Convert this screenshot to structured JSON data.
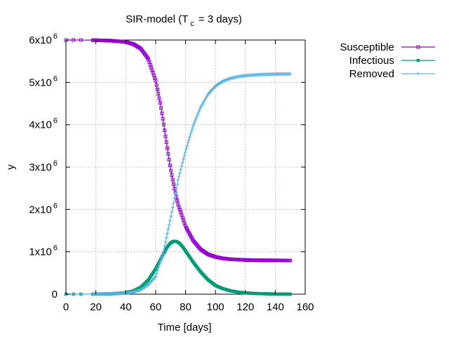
{
  "chart_data": {
    "type": "line",
    "title": {
      "main": "SIR-model (T",
      "sub": "c",
      "tail": "= 3 days)"
    },
    "xlabel": "Time [days]",
    "ylabel": "y",
    "xlim": [
      0,
      160
    ],
    "ylim": [
      0,
      6000000
    ],
    "x_ticks": [
      {
        "value": 0,
        "label": "0"
      },
      {
        "value": 20,
        "label": "20"
      },
      {
        "value": 40,
        "label": "40"
      },
      {
        "value": 60,
        "label": "60"
      },
      {
        "value": 80,
        "label": "80"
      },
      {
        "value": 100,
        "label": "100"
      },
      {
        "value": 120,
        "label": "120"
      },
      {
        "value": 140,
        "label": "140"
      },
      {
        "value": 160,
        "label": "160"
      }
    ],
    "y_ticks": [
      {
        "value": 0,
        "base": "0",
        "exp": ""
      },
      {
        "value": 1000000,
        "base": "1x10",
        "exp": "6"
      },
      {
        "value": 2000000,
        "base": "2x10",
        "exp": "6"
      },
      {
        "value": 3000000,
        "base": "3x10",
        "exp": "6"
      },
      {
        "value": 4000000,
        "base": "4x10",
        "exp": "6"
      },
      {
        "value": 5000000,
        "base": "5x10",
        "exp": "6"
      },
      {
        "value": 6000000,
        "base": "6x10",
        "exp": "6"
      }
    ],
    "grid": true,
    "legend_position": "outside-top-right",
    "series": [
      {
        "name": "Susceptible",
        "color": "#9400d3",
        "marker": "open-square",
        "x": [
          0,
          5,
          10,
          20,
          30,
          40,
          45,
          50,
          55,
          60,
          63,
          65,
          68,
          70,
          73,
          75,
          80,
          85,
          90,
          95,
          100,
          105,
          110,
          120,
          130,
          140,
          150
        ],
        "y": [
          6000000,
          6000000,
          6000000,
          5995000,
          5985000,
          5955000,
          5905000,
          5800000,
          5560000,
          5040000,
          4520000,
          4100000,
          3400000,
          2950000,
          2420000,
          2120000,
          1600000,
          1270000,
          1060000,
          940000,
          880000,
          845000,
          825000,
          808000,
          800000,
          797000,
          795000
        ]
      },
      {
        "name": "Infectious",
        "color": "#009e73",
        "marker": "filled-square",
        "x": [
          0,
          10,
          20,
          30,
          40,
          45,
          50,
          55,
          60,
          65,
          68,
          70,
          72,
          74,
          76,
          78,
          80,
          85,
          90,
          95,
          100,
          105,
          110,
          115,
          120,
          130,
          140,
          150
        ],
        "y": [
          0,
          0,
          2000,
          8000,
          35000,
          75000,
          160000,
          330000,
          600000,
          940000,
          1130000,
          1210000,
          1250000,
          1245000,
          1200000,
          1120000,
          1020000,
          760000,
          530000,
          340000,
          205000,
          130000,
          80000,
          50000,
          30000,
          12000,
          5000,
          2000
        ]
      },
      {
        "name": "Removed",
        "color": "#56b4e9",
        "marker": "plus",
        "x": [
          0,
          10,
          20,
          30,
          40,
          45,
          50,
          55,
          60,
          65,
          68,
          70,
          73,
          75,
          80,
          85,
          90,
          95,
          100,
          105,
          110,
          115,
          120,
          130,
          140,
          150
        ],
        "y": [
          0,
          0,
          3000,
          8000,
          25000,
          50000,
          100000,
          220000,
          420000,
          960000,
          1470000,
          1800000,
          2330000,
          2700000,
          3380000,
          3970000,
          4410000,
          4720000,
          4915000,
          5030000,
          5095000,
          5135000,
          5160000,
          5185000,
          5195000,
          5200000
        ]
      }
    ]
  }
}
